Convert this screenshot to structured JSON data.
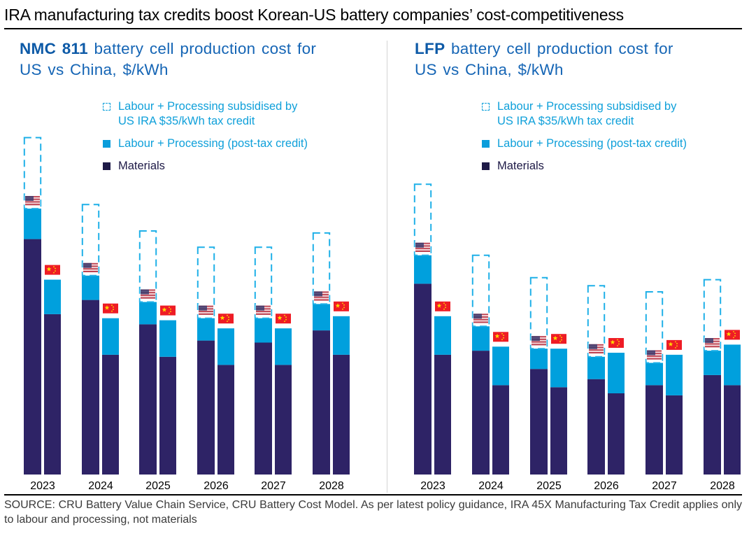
{
  "page": {
    "title": "IRA manufacturing tax credits boost Korean-US battery companies’ cost-competitiveness",
    "source": "SOURCE: CRU Battery Value Chain Service, CRU Battery Cost Model. As per latest policy guidance, IRA 45X Manufacturing Tax Credit applies only to labour and processing, not materials"
  },
  "colors": {
    "materials": "#2e2366",
    "labour_processing": "#00a0dd",
    "subsidy_outline": "#1fb0e8",
    "title_blue": "#1565b5",
    "legend_blue": "#0fa0da",
    "legend_dark": "#1e1a47",
    "china_flag_red": "#ee1c25",
    "china_flag_star": "#ffde00",
    "us_flag_blue": "#3c3b6e",
    "us_flag_red": "#b22234"
  },
  "legend": {
    "subsidised_line1": "Labour + Processing subsidised by",
    "subsidised_line2": "US IRA $35/kWh tax credit",
    "post_credit": "Labour + Processing (post-tax credit)",
    "materials": "Materials"
  },
  "panels": [
    {
      "title_bold": "NMC 811",
      "title_rest": " battery cell production cost for",
      "title_line2": "US vs China, $/kWh"
    },
    {
      "title_bold": "LFP",
      "title_rest": " battery cell production cost for",
      "title_line2": "US vs China, $/kWh"
    }
  ],
  "chart_data": [
    {
      "type": "bar",
      "stacked": true,
      "title": "NMC 811 battery cell production cost for US vs China, $/kWh",
      "xlabel": "",
      "ylabel": "$/kWh",
      "y_axis_visible": false,
      "gridlines": false,
      "legend_position": "top-right",
      "note": "Values estimated from bar heights, scaled by the $35/kWh subsidy box; no y-axis shown",
      "categories": [
        "2023",
        "2024",
        "2025",
        "2026",
        "2027",
        "2028"
      ],
      "subsidy_per_kwh": 35,
      "series": [
        {
          "name": "US - Materials",
          "country": "US",
          "component": "Materials",
          "values": [
            116,
            86,
            74,
            66,
            65,
            71
          ]
        },
        {
          "name": "US - Labour + Processing (post-tax credit)",
          "country": "US",
          "component": "Labour + Processing (post-tax credit)",
          "values": [
            15,
            12,
            11,
            11,
            12,
            13
          ]
        },
        {
          "name": "US - Labour + Processing subsidised by US IRA $35/kWh tax credit",
          "country": "US",
          "component": "Subsidised",
          "values": [
            35,
            35,
            35,
            35,
            35,
            35
          ]
        },
        {
          "name": "China - Materials",
          "country": "China",
          "component": "Materials",
          "values": [
            79,
            59,
            58,
            54,
            54,
            59
          ]
        },
        {
          "name": "China - Labour + Processing",
          "country": "China",
          "component": "Labour + Processing (post-tax credit)",
          "values": [
            17,
            18,
            18,
            18,
            18,
            19
          ]
        }
      ]
    },
    {
      "type": "bar",
      "stacked": true,
      "title": "LFP battery cell production cost for US vs China, $/kWh",
      "xlabel": "",
      "ylabel": "$/kWh",
      "y_axis_visible": false,
      "gridlines": false,
      "legend_position": "top-right",
      "note": "Values estimated from bar heights, scaled by the $35/kWh subsidy box; no y-axis shown",
      "categories": [
        "2023",
        "2024",
        "2025",
        "2026",
        "2027",
        "2028"
      ],
      "subsidy_per_kwh": 35,
      "series": [
        {
          "name": "US - Materials",
          "country": "US",
          "component": "Materials",
          "values": [
            94,
            61,
            52,
            47,
            44,
            49
          ]
        },
        {
          "name": "US - Labour + Processing (post-tax credit)",
          "country": "US",
          "component": "Labour + Processing (post-tax credit)",
          "values": [
            14,
            12,
            10,
            11,
            11,
            12
          ]
        },
        {
          "name": "US - Labour + Processing subsidised by US IRA $35/kWh tax credit",
          "country": "US",
          "component": "Subsidised",
          "values": [
            35,
            35,
            35,
            35,
            35,
            35
          ]
        },
        {
          "name": "China - Materials",
          "country": "China",
          "component": "Materials",
          "values": [
            59,
            44,
            43,
            40,
            39,
            44
          ]
        },
        {
          "name": "China - Labour + Processing",
          "country": "China",
          "component": "Labour + Processing (post-tax credit)",
          "values": [
            19,
            19,
            19,
            20,
            20,
            20
          ]
        }
      ]
    }
  ]
}
